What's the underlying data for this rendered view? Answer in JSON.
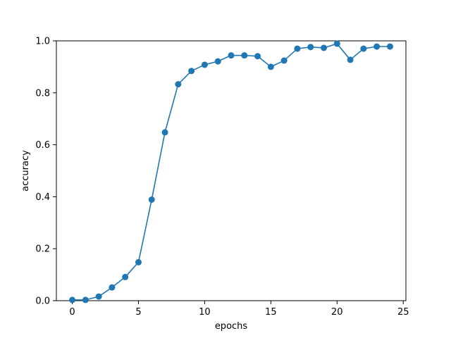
{
  "chart_data": {
    "type": "line",
    "title": "",
    "xlabel": "epochs",
    "ylabel": "accuracy",
    "xlim": [
      -1.2,
      25.2
    ],
    "ylim": [
      0.0,
      1.0
    ],
    "xticks": [
      0,
      5,
      10,
      15,
      20,
      25
    ],
    "yticks": [
      0.0,
      0.2,
      0.4,
      0.6,
      0.8,
      1.0
    ],
    "xtick_labels": [
      "0",
      "5",
      "10",
      "15",
      "20",
      "25"
    ],
    "ytick_labels": [
      "0.0",
      "0.2",
      "0.4",
      "0.6",
      "0.8",
      "1.0"
    ],
    "grid": false,
    "legend": "none",
    "series": [
      {
        "color": "#1f77b4",
        "marker": "circle",
        "x": [
          0,
          1,
          2,
          3,
          4,
          5,
          6,
          7,
          8,
          9,
          10,
          11,
          12,
          13,
          14,
          15,
          16,
          17,
          18,
          19,
          20,
          21,
          22,
          23,
          24
        ],
        "y": [
          0.003,
          0.003,
          0.016,
          0.051,
          0.091,
          0.148,
          0.389,
          0.648,
          0.833,
          0.884,
          0.908,
          0.921,
          0.944,
          0.944,
          0.941,
          0.9,
          0.924,
          0.97,
          0.976,
          0.973,
          0.989,
          0.927,
          0.97,
          0.978,
          0.978
        ]
      }
    ]
  }
}
